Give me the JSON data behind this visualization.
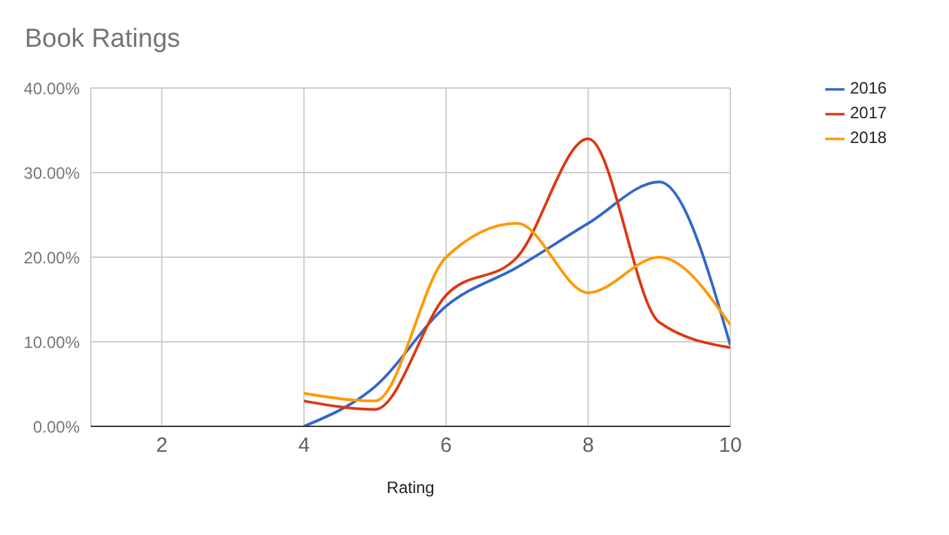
{
  "chart_data": {
    "type": "line",
    "title": "Book Ratings",
    "xlabel": "Rating",
    "x": [
      4,
      5,
      6,
      7,
      8,
      9,
      10
    ],
    "series": [
      {
        "name": "2016",
        "color": "#3366cc",
        "values": [
          0,
          4.7,
          14.2,
          18.8,
          24,
          28.9,
          9.6
        ]
      },
      {
        "name": "2017",
        "color": "#dc3912",
        "values": [
          3,
          2,
          15.5,
          20,
          34,
          12.3,
          9.3
        ]
      },
      {
        "name": "2018",
        "color": "#ff9900",
        "values": [
          3.9,
          3,
          20,
          24,
          15.8,
          20,
          12
        ]
      }
    ],
    "xlim": [
      1,
      10
    ],
    "xticks": [
      2,
      4,
      6,
      8,
      10
    ],
    "ylim": [
      0,
      40
    ],
    "yticks": [
      {
        "value": 0,
        "label": "0.00%"
      },
      {
        "value": 10,
        "label": "10.00%"
      },
      {
        "value": 20,
        "label": "20.00%"
      },
      {
        "value": 30,
        "label": "30.00%"
      },
      {
        "value": 40,
        "label": "40.00%"
      }
    ],
    "grid": true,
    "legend": "right",
    "marker": "none",
    "line_style": "solid"
  }
}
